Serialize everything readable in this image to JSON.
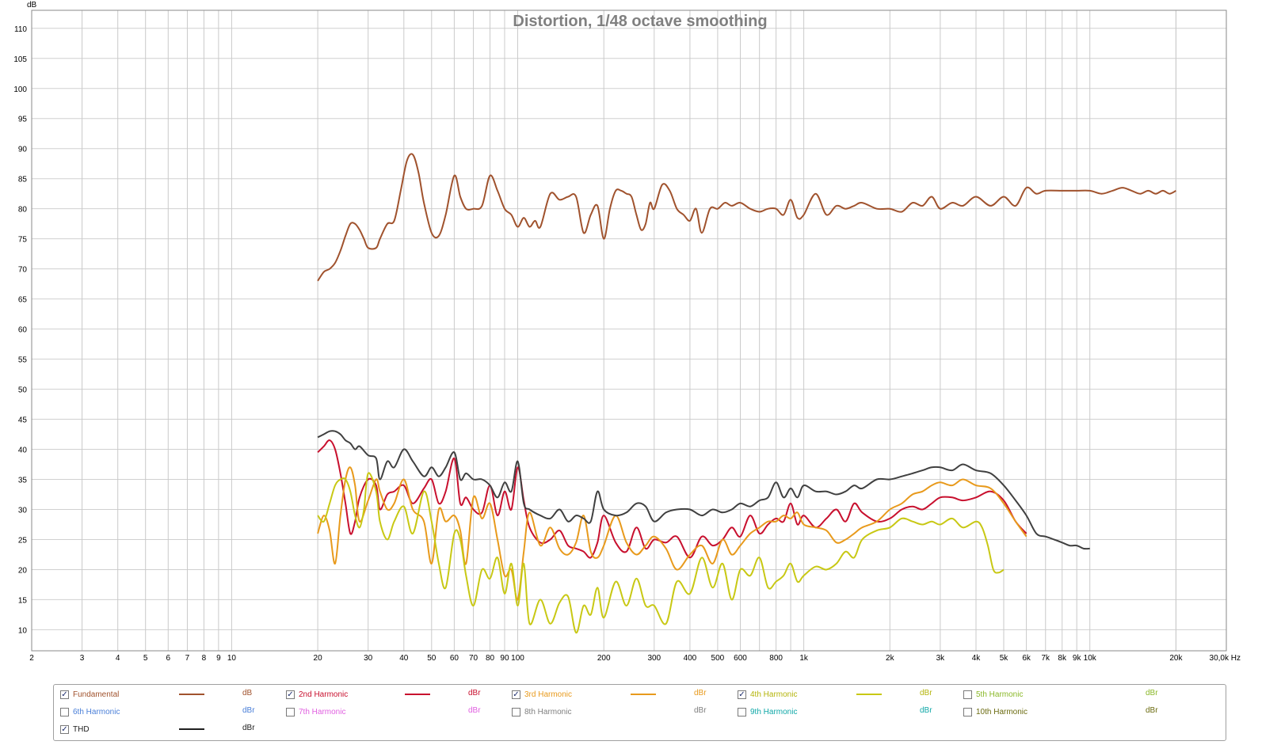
{
  "chart_data": {
    "type": "line",
    "title": "Distortion, 1/48 octave smoothing",
    "ylabel": "dB",
    "x_scale": "log",
    "xlim": [
      2,
      30000
    ],
    "ylim": [
      6.5,
      113
    ],
    "grid": true,
    "y_ticks": [
      10,
      15,
      20,
      25,
      30,
      35,
      40,
      45,
      50,
      55,
      60,
      65,
      70,
      75,
      80,
      85,
      90,
      95,
      100,
      105,
      110
    ],
    "x_ticks": [
      {
        "v": 2,
        "label": "2"
      },
      {
        "v": 3,
        "label": "3"
      },
      {
        "v": 4,
        "label": "4"
      },
      {
        "v": 5,
        "label": "5"
      },
      {
        "v": 6,
        "label": "6"
      },
      {
        "v": 7,
        "label": "7"
      },
      {
        "v": 8,
        "label": "8"
      },
      {
        "v": 9,
        "label": "9"
      },
      {
        "v": 10,
        "label": "10"
      },
      {
        "v": 20,
        "label": "20"
      },
      {
        "v": 30,
        "label": "30"
      },
      {
        "v": 40,
        "label": "40"
      },
      {
        "v": 50,
        "label": "50"
      },
      {
        "v": 60,
        "label": "60"
      },
      {
        "v": 70,
        "label": "70"
      },
      {
        "v": 80,
        "label": "80"
      },
      {
        "v": 90,
        "label": "90"
      },
      {
        "v": 100,
        "label": "100"
      },
      {
        "v": 200,
        "label": "200"
      },
      {
        "v": 300,
        "label": "300"
      },
      {
        "v": 400,
        "label": "400"
      },
      {
        "v": 500,
        "label": "500"
      },
      {
        "v": 600,
        "label": "600"
      },
      {
        "v": 800,
        "label": "800"
      },
      {
        "v": 1000,
        "label": "1k"
      },
      {
        "v": 2000,
        "label": "2k"
      },
      {
        "v": 3000,
        "label": "3k"
      },
      {
        "v": 4000,
        "label": "4k"
      },
      {
        "v": 5000,
        "label": "5k"
      },
      {
        "v": 6000,
        "label": "6k"
      },
      {
        "v": 7000,
        "label": "7k"
      },
      {
        "v": 8000,
        "label": "8k"
      },
      {
        "v": 9000,
        "label": "9k"
      },
      {
        "v": 10000,
        "label": "10k"
      },
      {
        "v": 20000,
        "label": "20k"
      },
      {
        "v": 30000,
        "label": "30,0k Hz"
      }
    ],
    "series": [
      {
        "name": "Fundamental",
        "color": "#a0522d",
        "x": [
          20,
          21,
          22,
          23,
          24,
          25,
          26,
          27,
          28,
          29,
          30,
          32,
          33,
          35,
          37,
          39,
          41,
          43,
          45,
          47,
          50,
          53,
          56,
          60,
          63,
          66,
          70,
          75,
          80,
          85,
          90,
          95,
          100,
          105,
          110,
          115,
          120,
          130,
          140,
          150,
          160,
          170,
          180,
          190,
          200,
          210,
          220,
          230,
          240,
          250,
          260,
          270,
          280,
          290,
          300,
          320,
          340,
          360,
          380,
          400,
          420,
          440,
          470,
          500,
          530,
          560,
          600,
          650,
          700,
          750,
          800,
          850,
          900,
          950,
          1000,
          1100,
          1200,
          1300,
          1400,
          1500,
          1600,
          1800,
          2000,
          2200,
          2400,
          2600,
          2800,
          3000,
          3300,
          3600,
          4000,
          4500,
          5000,
          5500,
          6000,
          6500,
          7000,
          8000,
          9000,
          10000,
          11000,
          12000,
          13000,
          14000,
          15000,
          16000,
          17000,
          18000,
          19000,
          20000
        ],
        "values": [
          68,
          69.5,
          70,
          71,
          73,
          75.5,
          77.5,
          77.5,
          76.5,
          75,
          73.5,
          73.5,
          75,
          77.5,
          78,
          83,
          88,
          89,
          86,
          81,
          76,
          75.5,
          79,
          85.5,
          82,
          80,
          80,
          80.5,
          85.5,
          83,
          80,
          79,
          77,
          78.5,
          77,
          78,
          77,
          82.5,
          81.5,
          82,
          82,
          76,
          79,
          80.5,
          75,
          80,
          83,
          83,
          82.5,
          82,
          79,
          76.5,
          77.5,
          81,
          80,
          84,
          83,
          80,
          79,
          78,
          80,
          76,
          80,
          80,
          81,
          80.5,
          81,
          80,
          79.5,
          80,
          80,
          79,
          81.5,
          78.5,
          79,
          82.5,
          79,
          80.5,
          80,
          80.5,
          81,
          80,
          80,
          79.5,
          81,
          80.5,
          82,
          80,
          81,
          80.5,
          82,
          80.5,
          82,
          80.5,
          83.5,
          82.5,
          83,
          83,
          83,
          83,
          82.5,
          83,
          83.5,
          83,
          82.5,
          83,
          82.5,
          83,
          82.5,
          83
        ]
      },
      {
        "name": "2nd Harmonic",
        "color": "#c8102e",
        "x": [
          20,
          21,
          22,
          23,
          24,
          25,
          26,
          27,
          28,
          30,
          32,
          33,
          35,
          37,
          40,
          43,
          47,
          50,
          53,
          56,
          60,
          63,
          66,
          70,
          75,
          80,
          85,
          90,
          95,
          100,
          105,
          110,
          120,
          130,
          140,
          150,
          160,
          170,
          180,
          190,
          200,
          220,
          240,
          260,
          280,
          300,
          330,
          360,
          400,
          440,
          480,
          520,
          560,
          600,
          650,
          700,
          750,
          800,
          850,
          900,
          950,
          1000,
          1100,
          1200,
          1300,
          1400,
          1500,
          1600,
          1800,
          2000,
          2200,
          2400,
          2600,
          2800,
          3000,
          3300,
          3600,
          4000,
          4500,
          5000,
          5500,
          6000
        ],
        "values": [
          39.5,
          40.5,
          41.5,
          40,
          36,
          31,
          26,
          28,
          32,
          35,
          34,
          30,
          32.5,
          33,
          34,
          31,
          33.5,
          35,
          31,
          33,
          38.5,
          31,
          32,
          30,
          29.5,
          34,
          29,
          33,
          30,
          37,
          31.5,
          27,
          24.5,
          25,
          26.5,
          24,
          23.5,
          23,
          22,
          24.5,
          29,
          24.5,
          23,
          27,
          23.5,
          25,
          24.5,
          25.5,
          22,
          25.5,
          24,
          25,
          27,
          25.5,
          29,
          26,
          27.5,
          28.5,
          28,
          31,
          27.5,
          29,
          27,
          28.5,
          30,
          28,
          31,
          29.5,
          28,
          28.5,
          30,
          30.5,
          30,
          31,
          32,
          32,
          31.5,
          32,
          33,
          31.5,
          28,
          26
        ]
      },
      {
        "name": "3rd Harmonic",
        "color": "#e89a1c",
        "x": [
          20,
          21,
          22,
          23,
          24,
          25,
          26,
          27,
          28,
          30,
          32,
          33,
          35,
          37,
          40,
          43,
          47,
          50,
          53,
          56,
          60,
          63,
          66,
          70,
          75,
          80,
          85,
          90,
          95,
          100,
          105,
          110,
          120,
          130,
          140,
          150,
          160,
          170,
          180,
          190,
          200,
          220,
          240,
          260,
          280,
          300,
          330,
          360,
          400,
          440,
          480,
          520,
          560,
          600,
          650,
          700,
          750,
          800,
          850,
          900,
          950,
          1000,
          1100,
          1200,
          1300,
          1400,
          1500,
          1600,
          1800,
          2000,
          2200,
          2400,
          2600,
          2800,
          3000,
          3300,
          3600,
          4000,
          4500,
          5000,
          5500,
          6000
        ],
        "values": [
          26,
          29,
          26.5,
          21,
          29,
          35,
          37,
          34,
          28,
          31.5,
          35,
          33,
          30,
          31,
          35,
          30,
          28,
          21,
          30,
          28,
          29,
          26.5,
          21,
          32,
          28.5,
          31,
          25,
          19,
          20,
          15,
          23,
          29.5,
          24,
          27,
          23.5,
          22.5,
          24.5,
          29,
          23,
          22,
          24,
          29,
          24.5,
          22.5,
          24,
          25.5,
          23.5,
          20,
          22.5,
          24,
          21,
          25,
          22.5,
          24,
          26,
          27,
          28,
          28,
          29,
          28.5,
          29.5,
          27.5,
          27,
          26.5,
          24.5,
          25,
          26,
          27,
          28,
          30,
          31,
          32.5,
          33,
          34,
          34.5,
          34,
          35,
          34,
          33.5,
          31,
          28,
          25.5
        ]
      },
      {
        "name": "4th Harmonic",
        "color": "#c8c814",
        "x": [
          20,
          21,
          22,
          23,
          24,
          25,
          26,
          27,
          28,
          29,
          30,
          32,
          33,
          35,
          37,
          40,
          43,
          47,
          50,
          53,
          56,
          60,
          63,
          66,
          70,
          75,
          80,
          85,
          90,
          95,
          100,
          105,
          110,
          120,
          130,
          140,
          150,
          160,
          170,
          180,
          190,
          200,
          220,
          240,
          260,
          280,
          300,
          330,
          360,
          400,
          440,
          480,
          520,
          560,
          600,
          650,
          700,
          750,
          800,
          850,
          900,
          950,
          1000,
          1100,
          1200,
          1300,
          1400,
          1500,
          1600,
          1800,
          2000,
          2200,
          2400,
          2600,
          2800,
          3000,
          3300,
          3600,
          4000,
          4200,
          4400,
          4600,
          4800,
          5000
        ],
        "values": [
          29,
          28,
          31,
          34,
          35,
          35,
          33,
          29,
          27,
          30,
          36,
          33,
          28,
          25,
          28,
          30.5,
          26,
          33,
          28,
          21,
          17,
          26,
          25,
          19,
          14,
          20,
          18.5,
          22,
          16,
          21,
          14,
          21,
          11,
          15,
          11,
          14.5,
          15.5,
          9.5,
          14,
          12.5,
          17,
          12,
          18,
          14,
          18.5,
          14,
          14,
          11,
          18,
          16,
          22,
          17,
          21,
          15,
          20,
          19,
          22,
          17,
          18,
          19,
          21,
          18,
          19,
          20.5,
          20,
          21,
          23,
          22,
          25,
          26.5,
          27,
          28.5,
          28,
          27.5,
          28,
          27.5,
          28.5,
          27,
          28,
          27,
          24,
          20,
          19.5,
          20
        ]
      },
      {
        "name": "THD",
        "color": "#404040",
        "x": [
          20,
          21,
          22,
          23,
          24,
          25,
          26,
          27,
          28,
          30,
          32,
          33,
          35,
          37,
          40,
          43,
          47,
          50,
          53,
          56,
          60,
          63,
          66,
          70,
          75,
          80,
          85,
          90,
          95,
          100,
          105,
          110,
          120,
          130,
          140,
          150,
          160,
          170,
          180,
          190,
          200,
          220,
          240,
          260,
          280,
          300,
          330,
          360,
          400,
          440,
          480,
          520,
          560,
          600,
          650,
          700,
          750,
          800,
          850,
          900,
          950,
          1000,
          1100,
          1200,
          1300,
          1400,
          1500,
          1600,
          1800,
          2000,
          2200,
          2400,
          2600,
          2800,
          3000,
          3300,
          3600,
          4000,
          4500,
          5000,
          5500,
          6000,
          6500,
          7000,
          7500,
          8000,
          8500,
          9000,
          9500,
          10000
        ],
        "values": [
          42,
          42.5,
          43,
          43,
          42.5,
          41.5,
          41,
          40,
          40.5,
          39,
          38.5,
          35,
          38,
          37,
          40,
          38,
          35.5,
          37,
          35.5,
          37,
          39.5,
          35,
          36,
          35,
          35,
          34,
          32,
          34.5,
          33,
          38,
          31,
          30,
          29,
          28.5,
          30,
          28,
          29,
          28.5,
          28,
          33,
          30,
          29,
          29.5,
          31,
          30.5,
          28,
          29.5,
          30,
          30,
          29,
          30,
          29.5,
          30,
          31,
          30.5,
          31.5,
          32,
          34.5,
          32,
          33.5,
          32,
          34,
          33,
          33,
          32.5,
          33,
          34,
          33.5,
          35,
          35,
          35.5,
          36,
          36.5,
          37,
          37,
          36.5,
          37.5,
          36.5,
          36,
          34,
          31.5,
          29,
          26,
          25.5,
          25,
          24.5,
          24,
          24,
          23.5,
          23.5
        ]
      }
    ]
  },
  "legend": {
    "items": [
      {
        "label": "Fundamental",
        "checked": true,
        "unit": "dB",
        "color": "#a0522d",
        "label_color": "#a0522d",
        "line": true
      },
      {
        "label": "2nd Harmonic",
        "checked": true,
        "unit": "dBr",
        "color": "#c8102e",
        "label_color": "#c8102e",
        "line": true
      },
      {
        "label": "3rd Harmonic",
        "checked": true,
        "unit": "dBr",
        "color": "#e89a1c",
        "label_color": "#e89a1c",
        "line": true
      },
      {
        "label": "4th Harmonic",
        "checked": true,
        "unit": "dBr",
        "color": "#c8c814",
        "label_color": "#b4b40a",
        "line": true
      },
      {
        "label": "5th Harmonic",
        "checked": false,
        "unit": "dBr",
        "color": "#9acd32",
        "label_color": "#8ab828",
        "line": false
      },
      {
        "label": "6th Harmonic",
        "checked": false,
        "unit": "dBr",
        "color": "#4a7fd8",
        "label_color": "#4a7fd8",
        "line": false
      },
      {
        "label": "7th Harmonic",
        "checked": false,
        "unit": "dBr",
        "color": "#e060e0",
        "label_color": "#e060e0",
        "line": false
      },
      {
        "label": "8th Harmonic",
        "checked": false,
        "unit": "dBr",
        "color": "#909090",
        "label_color": "#808080",
        "line": false
      },
      {
        "label": "9th Harmonic",
        "checked": false,
        "unit": "dBr",
        "color": "#10b8b8",
        "label_color": "#10a8a8",
        "line": false
      },
      {
        "label": "10th Harmonic",
        "checked": false,
        "unit": "dBr",
        "color": "#6b6b10",
        "label_color": "#6b6b10",
        "line": false
      },
      {
        "label": "THD",
        "checked": true,
        "unit": "dBr",
        "color": "#202020",
        "label_color": "#202020",
        "line": true
      }
    ]
  }
}
